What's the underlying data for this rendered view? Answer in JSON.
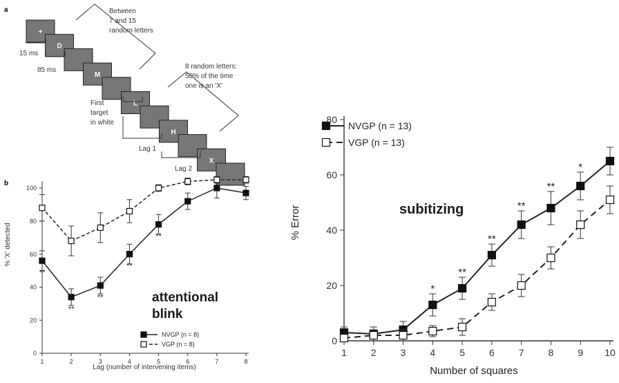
{
  "panel_a": {
    "label": "a",
    "letters": [
      "+",
      "D",
      "",
      "M",
      "",
      "L",
      "",
      "H",
      "",
      "X",
      ""
    ],
    "text_between": [
      "Between",
      "7 and 15",
      "random letters"
    ],
    "text_15ms": "15 ms",
    "text_85ms": "85 ms",
    "text_first_target": [
      "First",
      "target",
      "in white"
    ],
    "text_8_random": [
      "8 random letters:",
      "50% of the time",
      "one is an 'X'"
    ],
    "text_lag1": "Lag 1",
    "text_lag2": "Lag 2"
  },
  "overlays": {
    "attentional_blink": [
      "attentional",
      "blink"
    ],
    "subitizing": "subitizing"
  },
  "chart_data": [
    {
      "type": "line",
      "panel_label": "b",
      "xlabel": "Lag (number of intervening items)",
      "ylabel": "% 'X' detected",
      "x": [
        1,
        2,
        3,
        4,
        5,
        6,
        7,
        8
      ],
      "xlim": [
        1,
        8
      ],
      "ylim": [
        0,
        100
      ],
      "yticks": [
        0,
        20,
        40,
        60,
        80,
        100
      ],
      "series": [
        {
          "name": "NVGP (n = 8)",
          "style": "solid",
          "marker": "filled-square",
          "values": [
            56,
            34,
            41,
            60,
            78,
            92,
            100,
            97
          ],
          "err": [
            6,
            5,
            5,
            6,
            6,
            5,
            6,
            4
          ]
        },
        {
          "name": "VGP (n = 8)",
          "style": "dashed",
          "marker": "open-square",
          "values": [
            88,
            68,
            76,
            86,
            100,
            104,
            105,
            105
          ],
          "err": [
            8,
            9,
            9,
            7,
            2,
            2,
            2,
            2
          ]
        }
      ],
      "significance": [
        {
          "x": 1,
          "y": 49,
          "text": "**"
        },
        {
          "x": 2,
          "y": 27,
          "text": "**"
        },
        {
          "x": 3,
          "y": 34,
          "text": "**"
        },
        {
          "x": 4,
          "y": 53,
          "text": "**"
        },
        {
          "x": 5,
          "y": 71,
          "text": "**"
        }
      ],
      "legend_position": "bottom-right"
    },
    {
      "type": "line",
      "xlabel": "Number of squares",
      "ylabel": "% Error",
      "x": [
        1,
        2,
        3,
        4,
        5,
        6,
        7,
        8,
        9,
        10
      ],
      "xlim": [
        1,
        10
      ],
      "ylim": [
        0,
        80
      ],
      "yticks": [
        0,
        20,
        40,
        60,
        80
      ],
      "series": [
        {
          "name": "NVGP (n = 13)",
          "style": "solid",
          "marker": "filled-square",
          "values": [
            3,
            2.5,
            4,
            13,
            19,
            31,
            42,
            48,
            56,
            65
          ],
          "err": [
            2,
            2.5,
            3,
            4,
            4,
            4,
            5,
            6,
            5,
            5
          ]
        },
        {
          "name": "VGP (n = 13)",
          "style": "dashed",
          "marker": "open-square",
          "values": [
            1,
            2,
            2,
            3.5,
            5,
            14,
            20,
            30,
            42,
            51
          ],
          "err": [
            1,
            2,
            2,
            2,
            3,
            3,
            4,
            4,
            5,
            5
          ]
        }
      ],
      "significance": [
        {
          "x": 4,
          "y": 19,
          "text": "*"
        },
        {
          "x": 5,
          "y": 25,
          "text": "**"
        },
        {
          "x": 6,
          "y": 37,
          "text": "**"
        },
        {
          "x": 7,
          "y": 49,
          "text": "**"
        },
        {
          "x": 8,
          "y": 56,
          "text": "**"
        },
        {
          "x": 9,
          "y": 63,
          "text": "*"
        }
      ],
      "legend_position": "top-left"
    }
  ]
}
